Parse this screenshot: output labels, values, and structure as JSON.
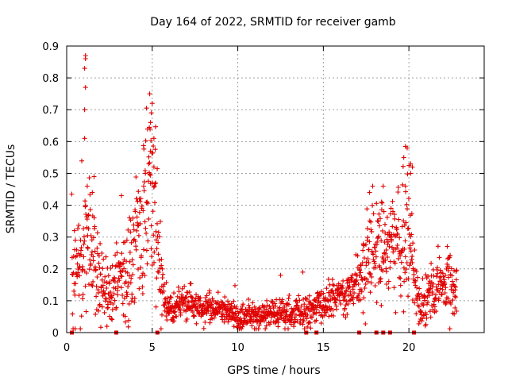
{
  "chart_data": {
    "type": "scatter",
    "title": "Day 164 of 2022, SRMTID for receiver gamb",
    "xlabel": "GPS time / hours",
    "ylabel": "SRMTID / TECUs",
    "xlim": [
      0,
      24.4
    ],
    "ylim": [
      0,
      0.9
    ],
    "x_ticks": [
      0,
      5,
      10,
      15,
      20
    ],
    "y_ticks": [
      0,
      0.1,
      0.2,
      0.3,
      0.4,
      0.5,
      0.6,
      0.7,
      0.8,
      0.9
    ],
    "x_tick_labels": [
      "0",
      "5",
      "10",
      "15",
      "20"
    ],
    "y_tick_labels": [
      "0",
      "0.1",
      "0.2",
      "0.3",
      "0.4",
      "0.5",
      "0.6",
      "0.7",
      "0.8",
      "0.9"
    ],
    "grid": true,
    "marker": "plus",
    "color": "#e00000",
    "trend_control_points": [
      [
        0.3,
        0.2
      ],
      [
        0.7,
        0.22
      ],
      [
        1.0,
        0.28
      ],
      [
        1.2,
        0.3
      ],
      [
        1.6,
        0.22
      ],
      [
        2.0,
        0.18
      ],
      [
        2.4,
        0.12
      ],
      [
        2.7,
        0.12
      ],
      [
        3.0,
        0.22
      ],
      [
        3.5,
        0.15
      ],
      [
        4.0,
        0.3
      ],
      [
        4.5,
        0.38
      ],
      [
        5.0,
        0.42
      ],
      [
        5.3,
        0.3
      ],
      [
        5.6,
        0.12
      ],
      [
        6.0,
        0.08
      ],
      [
        7.0,
        0.09
      ],
      [
        8.0,
        0.08
      ],
      [
        9.0,
        0.07
      ],
      [
        10.0,
        0.05
      ],
      [
        11.0,
        0.05
      ],
      [
        12.0,
        0.06
      ],
      [
        13.0,
        0.06
      ],
      [
        14.0,
        0.06
      ],
      [
        15.0,
        0.09
      ],
      [
        16.0,
        0.12
      ],
      [
        16.8,
        0.14
      ],
      [
        17.3,
        0.2
      ],
      [
        17.8,
        0.28
      ],
      [
        18.3,
        0.25
      ],
      [
        18.8,
        0.3
      ],
      [
        19.3,
        0.26
      ],
      [
        19.7,
        0.28
      ],
      [
        20.0,
        0.35
      ],
      [
        20.3,
        0.16
      ],
      [
        20.6,
        0.1
      ],
      [
        21.2,
        0.12
      ],
      [
        21.8,
        0.14
      ],
      [
        22.4,
        0.16
      ],
      [
        22.8,
        0.15
      ]
    ],
    "spread_control_points": [
      [
        0.3,
        0.09
      ],
      [
        1.0,
        0.14
      ],
      [
        2.0,
        0.06
      ],
      [
        3.0,
        0.06
      ],
      [
        4.5,
        0.12
      ],
      [
        5.2,
        0.12
      ],
      [
        5.6,
        0.04
      ],
      [
        6.0,
        0.025
      ],
      [
        9.0,
        0.022
      ],
      [
        12.0,
        0.022
      ],
      [
        14.0,
        0.025
      ],
      [
        15.0,
        0.025
      ],
      [
        16.8,
        0.035
      ],
      [
        17.5,
        0.08
      ],
      [
        19.0,
        0.07
      ],
      [
        20.0,
        0.09
      ],
      [
        20.5,
        0.05
      ],
      [
        22.8,
        0.05
      ]
    ],
    "notable_points": [
      [
        1.1,
        0.87
      ],
      [
        1.1,
        0.86
      ],
      [
        1.05,
        0.83
      ],
      [
        1.1,
        0.77
      ],
      [
        1.05,
        0.7
      ],
      [
        1.05,
        0.61
      ],
      [
        1.2,
        0.46
      ],
      [
        1.6,
        0.49
      ],
      [
        1.5,
        0.44
      ],
      [
        4.85,
        0.75
      ],
      [
        5.0,
        0.72
      ],
      [
        4.95,
        0.69
      ],
      [
        4.9,
        0.66
      ],
      [
        5.1,
        0.61
      ],
      [
        4.9,
        0.57
      ],
      [
        4.8,
        0.53
      ],
      [
        5.1,
        0.52
      ],
      [
        4.6,
        0.5
      ],
      [
        5.2,
        0.47
      ],
      [
        4.5,
        0.46
      ],
      [
        3.2,
        0.43
      ],
      [
        4.1,
        0.42
      ],
      [
        12.5,
        0.18
      ],
      [
        13.8,
        0.19
      ],
      [
        19.8,
        0.585
      ],
      [
        19.9,
        0.58
      ],
      [
        19.7,
        0.55
      ],
      [
        20.1,
        0.53
      ],
      [
        20.2,
        0.52
      ],
      [
        20.1,
        0.5
      ],
      [
        19.8,
        0.46
      ],
      [
        18.5,
        0.46
      ],
      [
        17.7,
        0.44
      ],
      [
        18.4,
        0.41
      ]
    ],
    "zero_points_x": [
      0.3,
      2.9,
      5.3,
      14.0,
      14.6,
      17.1,
      18.1,
      18.5,
      18.9,
      20.3
    ]
  }
}
